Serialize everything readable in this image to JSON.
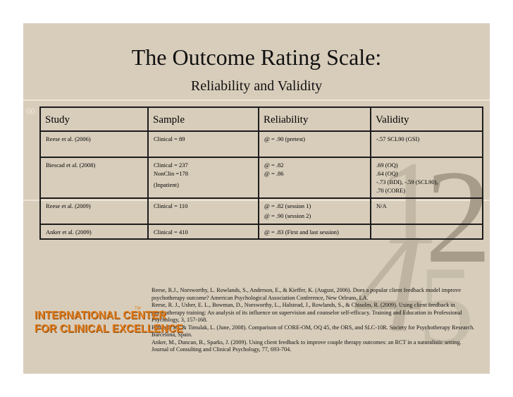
{
  "slide": {
    "title": "The Outcome Rating Scale:",
    "subtitle": "Reliability and Validity"
  },
  "decor": {
    "corner_text": "00",
    "digit_1": "1",
    "digit_2": "2",
    "digit_4": "4",
    "digit_5": "5"
  },
  "table": {
    "headers": [
      "Study",
      "Sample",
      "Reliability",
      "Validity"
    ],
    "rows": [
      {
        "study": "Reese et al. (2006)",
        "sample": [
          "Clinical = 89"
        ],
        "reliability": [
          "@ = .90 (pretest)"
        ],
        "validity": [
          "-.57 SCL90 (GSI)"
        ]
      },
      {
        "study": "Biescad et al. (2008)",
        "sample": [
          "Clinical = 237",
          "NonClin =178",
          "(Inpatient)"
        ],
        "reliability": [
          "@ = .82",
          "@ = .86"
        ],
        "validity": [
          ".69 (OQ)",
          ".64 (OQ)",
          "-.73 (BDI), -.59 (SCL90),",
          ".70 (CORE)"
        ]
      },
      {
        "study": "Reese et al. (2009)",
        "sample": [
          "Clinical = 110"
        ],
        "reliability": [
          "@ = .82 (session 1)",
          "@ = .90 (session 2)"
        ],
        "validity": [
          "N/A"
        ]
      },
      {
        "study": "Anker et al. (2009)",
        "sample": [
          "Clinical = 410"
        ],
        "reliability": [
          "@ = .83 (First and last session)"
        ],
        "validity": [
          ""
        ]
      }
    ]
  },
  "references": [
    "Reese, R.J., Norsworthy, L. Rowlands, S., Anderson, E., & Kieffer, K. (August, 2006). Does a popular client feedback model improve psychotherapy outcome? American Psychological Association Conference, New Orleans, LA.",
    "Reese, R. J., Usher, E. L., Bowman, D., Norsworthy, L., Halstead, J., Rowlands, S., & Chisolm, R. (2009). Using client feedback in psychotherapy training: An analysis of its influence on supervision and counselor self-efficacy. Training and Education in Professional Psychology, 3, 157-168.",
    "Biescad, M., & Timulak, L. (June, 2008). Comparison of CORE-OM, OQ 45, the ORS, and SLC-10R. Society for Psychotherapy Research. Barcelona, Spain.",
    "Anker, M., Duncan, B., Sparks, J. (2009). Using client feedback to improve couple therapy outcomes: an RCT in a naturalistic setting. Journal of Consulting and Clinical Psychology, 77, 693-704."
  ],
  "logo": {
    "line1": "INTERNATIONAL CENTER",
    "line2": "FOR CLINICAL EXCELLENCE",
    "mark": "TM"
  },
  "colors": {
    "background": "#d8cdbb",
    "logo_orange": "#e07a18",
    "text": "#111111"
  }
}
